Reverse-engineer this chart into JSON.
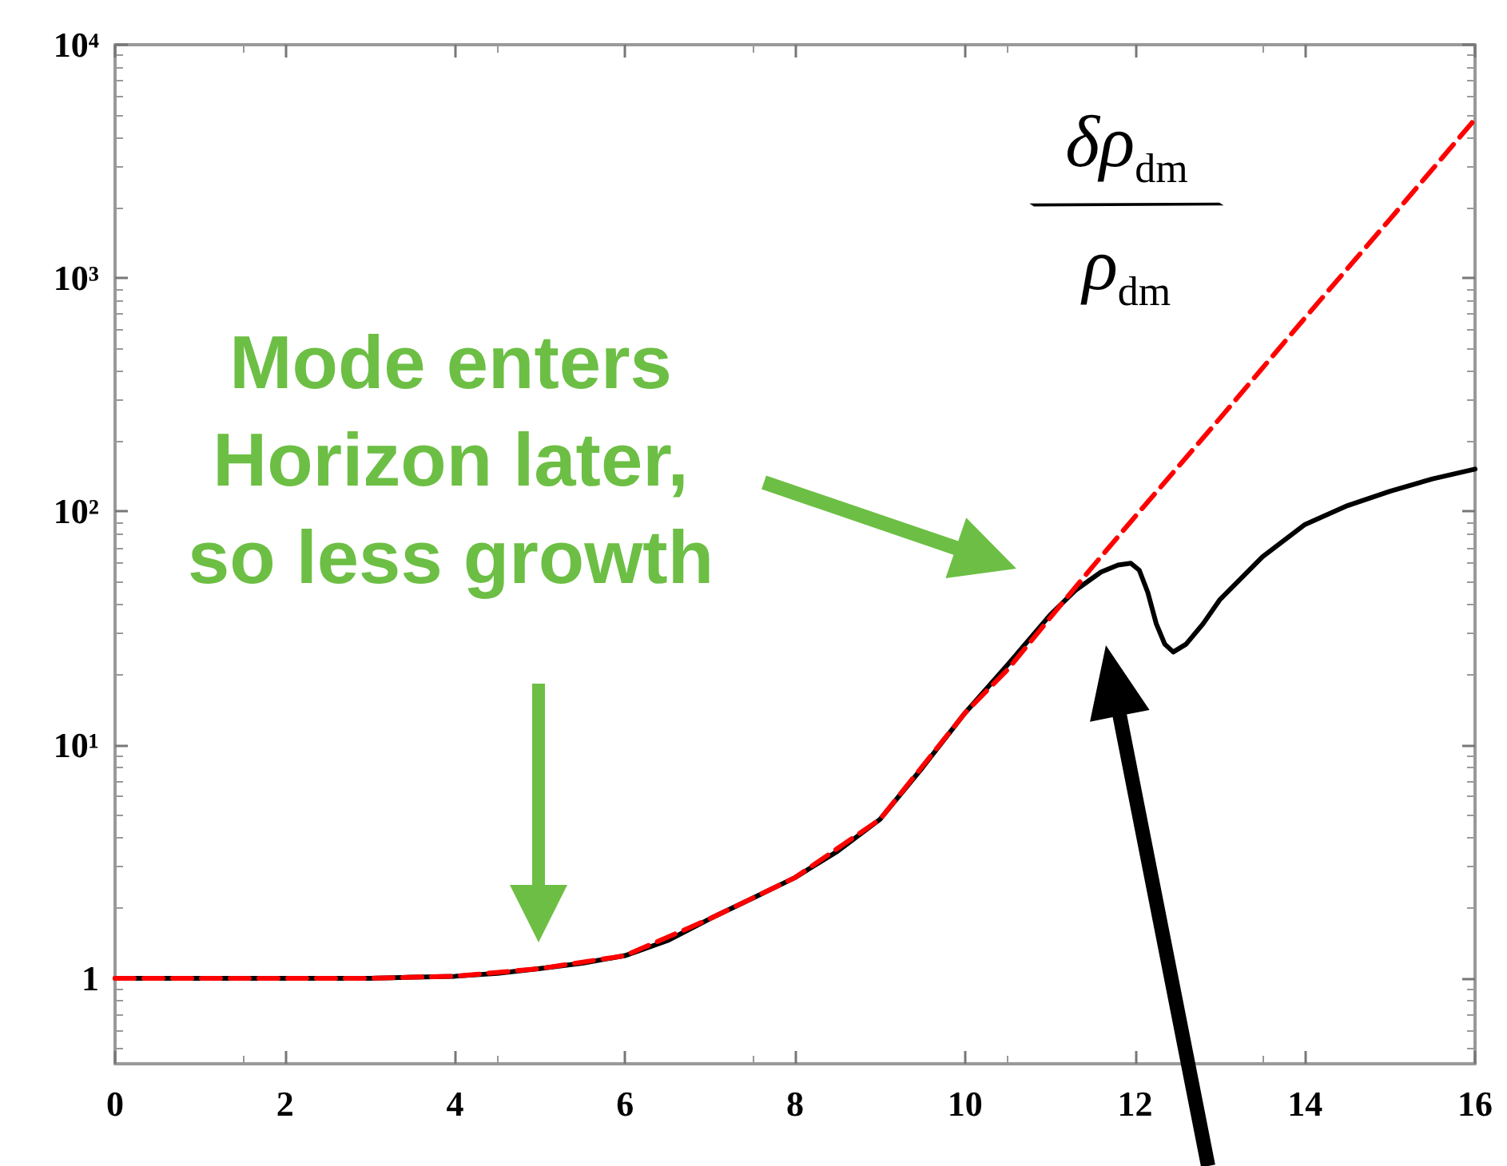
{
  "chart_data": {
    "type": "line",
    "xlim": [
      0,
      16
    ],
    "xticks": [
      0,
      2,
      4,
      6,
      8,
      10,
      12,
      14,
      16
    ],
    "ylim": [
      0.43,
      10000
    ],
    "yticks": [
      {
        "value": 1,
        "label": "1"
      },
      {
        "value": 10,
        "label": "10¹"
      },
      {
        "value": 100,
        "label": "10²"
      },
      {
        "value": 1000,
        "label": "10³"
      },
      {
        "value": 10000,
        "label": "10⁴"
      }
    ],
    "log": "y",
    "marker": "none",
    "series": [
      {
        "color": "#ff0000",
        "line_style": "dashed",
        "x": [
          0,
          1,
          2,
          3,
          4,
          5,
          6,
          7,
          8,
          9,
          10,
          10.5,
          11,
          11.5,
          12,
          13,
          14,
          15,
          16
        ],
        "values": [
          1,
          1,
          1,
          1,
          1.02,
          1.1,
          1.25,
          1.8,
          2.7,
          4.8,
          13.7,
          21,
          35,
          58,
          95,
          251,
          676,
          1790,
          4800
        ]
      },
      {
        "color": "#000000",
        "line_style": "solid",
        "x": [
          0,
          1,
          2,
          3,
          4,
          4.5,
          5,
          5.5,
          6,
          6.5,
          7,
          7.5,
          8,
          8.5,
          9,
          9.5,
          10,
          10.5,
          11,
          11.3,
          11.6,
          11.8,
          11.95,
          12.05,
          12.15,
          12.25,
          12.35,
          12.45,
          12.6,
          12.8,
          13,
          13.5,
          14,
          14.5,
          15,
          15.5,
          16
        ],
        "values": [
          1,
          1,
          1,
          1,
          1.02,
          1.05,
          1.1,
          1.16,
          1.25,
          1.45,
          1.8,
          2.2,
          2.7,
          3.5,
          4.8,
          8,
          13.7,
          22,
          36,
          46,
          55,
          59,
          60,
          56,
          45,
          33,
          27,
          25,
          27,
          33,
          42,
          64,
          88,
          106,
          122,
          138,
          152
        ]
      }
    ],
    "annotations": [
      "Mode enters\nHorizon later,\nso less growth",
      "δρ$_{dm}$/ρ$_{dm}$"
    ]
  }
}
